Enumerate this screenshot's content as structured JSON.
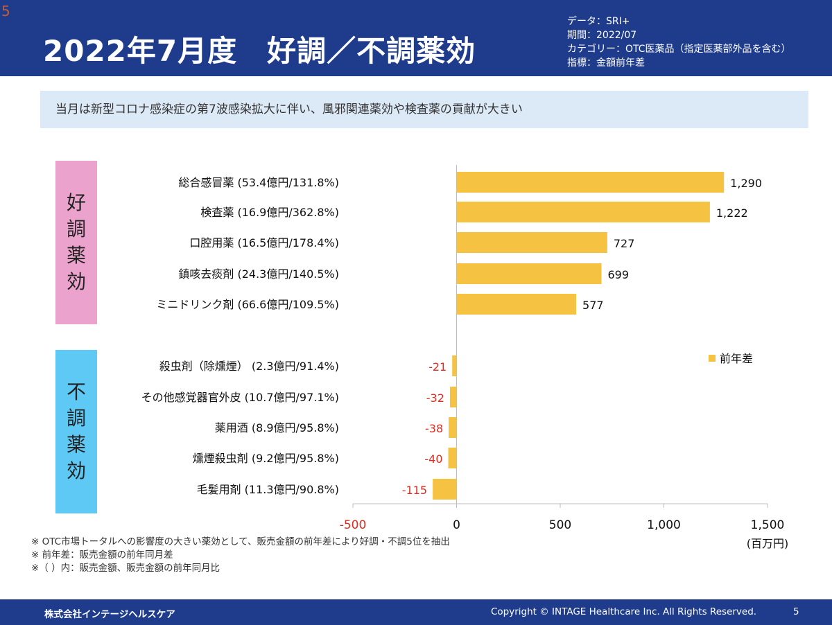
{
  "page_corner": "5",
  "header": {
    "title": "2022年7月度　好調／不調薬効",
    "meta": [
      "データ：SRI+",
      "期間：2022/07",
      "カテゴリー：OTC医薬品（指定医薬部外品を含む）",
      "指標：金額前年差"
    ]
  },
  "summary": "当月は新型コロナ感染症の第7波感染拡大に伴い、風邪関連薬効や検査薬の貢献が大きい",
  "groups": {
    "good": [
      "好",
      "調",
      "薬",
      "効"
    ],
    "bad": [
      "不",
      "調",
      "薬",
      "効"
    ]
  },
  "chart_data": {
    "type": "bar",
    "orientation": "horizontal",
    "categories": [
      "総合感冒薬 (53.4億円/131.8%)",
      "検査薬 (16.9億円/362.8%)",
      "口腔用薬 (16.5億円/178.4%)",
      "鎮咳去痰剤 (24.3億円/140.5%)",
      "ミニドリンク剤 (66.6億円/109.5%)",
      "殺虫剤（除燻煙） (2.3億円/91.4%)",
      "その他感覚器官外皮 (10.7億円/97.1%)",
      "薬用酒 (8.9億円/95.8%)",
      "燻煙殺虫剤 (9.2億円/95.8%)",
      "毛髪用剤 (11.3億円/90.8%)"
    ],
    "series": [
      {
        "name": "前年差",
        "values": [
          1290,
          1222,
          727,
          699,
          577,
          -21,
          -32,
          -38,
          -40,
          -115
        ],
        "value_labels": [
          "1,290",
          "1,222",
          "727",
          "699",
          "577",
          "-21",
          "-32",
          "-38",
          "-40",
          "-115"
        ]
      }
    ],
    "xlim": [
      -500,
      1500
    ],
    "xticks": [
      -500,
      0,
      500,
      1000,
      1500
    ],
    "xtick_labels": [
      "-500",
      "0",
      "500",
      "1,000",
      "1,500"
    ],
    "x_unit": "(百万円)",
    "legend": "right",
    "grid": false,
    "colors": {
      "bar": "#f5c242",
      "negative_label": "#e02b20",
      "negative_tick": "#e02b20"
    }
  },
  "notes": [
    "※ OTC市場トータルへの影響度の大きい薬効として、販売金額の前年差により好調・不調5位を抽出",
    "※ 前年差：販売金額の前年同月差",
    "※（ ）内：販売金額、販売金額の前年同月比"
  ],
  "footer": {
    "company": "株式会社インテージヘルスケア",
    "copyright": "Copyright © INTAGE Healthcare Inc. All Rights Reserved.",
    "page_number": "5"
  }
}
